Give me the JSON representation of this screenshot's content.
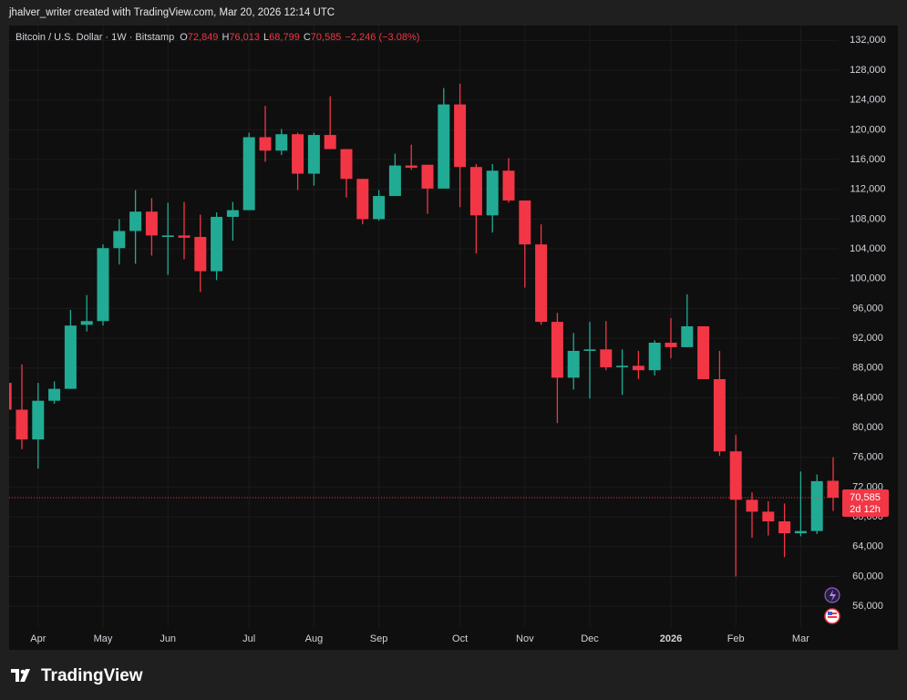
{
  "page": {
    "credit": "jhalver_writer created with TradingView.com, Mar 20, 2026 12:14 UTC",
    "brand": "TradingView"
  },
  "header": {
    "symbol": "Bitcoin / U.S. Dollar · 1W · Bitstamp",
    "fields": [
      {
        "key": "O",
        "value": "72,849"
      },
      {
        "key": "H",
        "value": "76,013"
      },
      {
        "key": "L",
        "value": "68,799"
      },
      {
        "key": "C",
        "value": "70,585"
      }
    ],
    "change": "−2,246 (−3.08%)"
  },
  "chart_data": {
    "type": "candlestick",
    "categories": [
      null,
      null,
      "Apr",
      null,
      null,
      null,
      "May",
      null,
      null,
      null,
      "Jun",
      null,
      null,
      null,
      null,
      "Jul",
      null,
      null,
      null,
      "Aug",
      null,
      null,
      null,
      "Sep",
      null,
      null,
      null,
      null,
      "Oct",
      null,
      null,
      null,
      "Nov",
      null,
      null,
      null,
      "Dec",
      null,
      null,
      null,
      null,
      "2026",
      null,
      null,
      null,
      "Feb",
      null,
      null,
      null,
      "Mar",
      null,
      null
    ],
    "open": [
      86000,
      82400,
      78400,
      83600,
      85200,
      93800,
      94300,
      104100,
      106400,
      109000,
      105600,
      105800,
      105600,
      101000,
      108300,
      109200,
      119000,
      117200,
      119400,
      114100,
      119300,
      117400,
      113400,
      108000,
      111100,
      115200,
      115300,
      112100,
      123400,
      115000,
      108500,
      114500,
      110500,
      104600,
      94200,
      86700,
      90300,
      90500,
      88100,
      88300,
      87700,
      91400,
      90800,
      93600,
      86500,
      76800,
      70300,
      68700,
      67400,
      65800,
      66100,
      72849
    ],
    "high": [
      88700,
      88500,
      86000,
      86200,
      95800,
      97800,
      104600,
      108000,
      111900,
      110800,
      110200,
      110300,
      108600,
      108900,
      110300,
      119600,
      123200,
      120100,
      119600,
      119600,
      124500,
      117400,
      113400,
      111900,
      116800,
      118000,
      115300,
      125600,
      126200,
      115400,
      115400,
      116200,
      110500,
      107300,
      95400,
      92700,
      94200,
      94300,
      90500,
      90300,
      91700,
      94700,
      97900,
      93600,
      90300,
      79000,
      71300,
      70100,
      69800,
      74100,
      73700,
      76013
    ],
    "low": [
      81300,
      77100,
      74500,
      83200,
      85200,
      92900,
      93700,
      101900,
      102000,
      103100,
      100500,
      102600,
      98200,
      99800,
      105100,
      109200,
      115700,
      116600,
      111900,
      112500,
      117400,
      110900,
      107300,
      107800,
      111100,
      114600,
      108700,
      112100,
      109600,
      103400,
      106200,
      110200,
      98800,
      93800,
      80600,
      85100,
      83900,
      87700,
      84400,
      86500,
      87000,
      89300,
      90800,
      86500,
      76200,
      60000,
      65200,
      65500,
      62600,
      65400,
      65700,
      68799
    ],
    "close": [
      82400,
      78400,
      83600,
      85200,
      93700,
      94300,
      104100,
      106400,
      109000,
      105800,
      105800,
      105500,
      101000,
      108300,
      109200,
      119000,
      117200,
      119400,
      114100,
      119300,
      117400,
      113400,
      108000,
      111100,
      115200,
      114900,
      112100,
      123400,
      115000,
      108500,
      114500,
      110500,
      104600,
      94200,
      86700,
      90300,
      90500,
      88100,
      88300,
      87700,
      91400,
      90800,
      93600,
      86500,
      76800,
      70300,
      68700,
      67400,
      65800,
      66100,
      72800,
      70585
    ],
    "up_color": "#22ab94",
    "down_color": "#f23645",
    "ylim": [
      53200,
      134000
    ],
    "yticks": [
      {
        "value": 56000,
        "label": "56,000"
      },
      {
        "value": 60000,
        "label": "60,000"
      },
      {
        "value": 64000,
        "label": "64,000"
      },
      {
        "value": 68000,
        "label": "68,000"
      },
      {
        "value": 72000,
        "label": "72,000"
      },
      {
        "value": 76000,
        "label": "76,000"
      },
      {
        "value": 80000,
        "label": "80,000"
      },
      {
        "value": 84000,
        "label": "84,000"
      },
      {
        "value": 88000,
        "label": "88,000"
      },
      {
        "value": 92000,
        "label": "92,000"
      },
      {
        "value": 96000,
        "label": "96,000"
      },
      {
        "value": 100000,
        "label": "100,000"
      },
      {
        "value": 104000,
        "label": "104,000"
      },
      {
        "value": 108000,
        "label": "108,000"
      },
      {
        "value": 112000,
        "label": "112,000"
      },
      {
        "value": 116000,
        "label": "116,000"
      },
      {
        "value": 120000,
        "label": "120,000"
      },
      {
        "value": 124000,
        "label": "124,000"
      },
      {
        "value": 128000,
        "label": "128,000"
      },
      {
        "value": 132000,
        "label": "132,000"
      }
    ],
    "grid": true,
    "price_tag_label": "70,585",
    "countdown": "2d 12h"
  }
}
